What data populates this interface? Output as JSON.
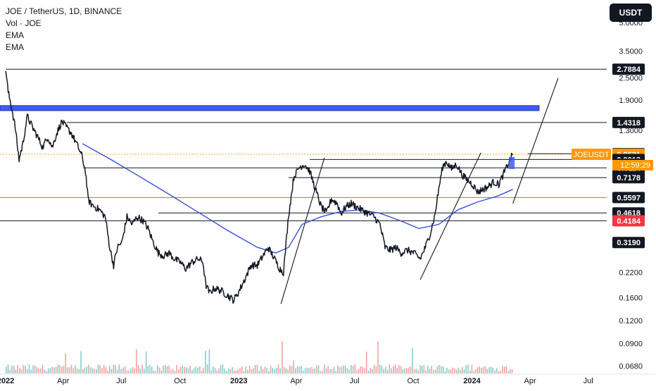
{
  "header": {
    "title": "JOE / TetherUS, 1D, BINANCE",
    "indicators": [
      "Vol · JOE",
      "EMA",
      "EMA"
    ],
    "currency_button": "USDT"
  },
  "colors": {
    "price": "#131722",
    "ema": "#3b4fd8",
    "volume_up": "#26a69a",
    "volume_down": "#ef5350",
    "zone": "#3d5afe",
    "support_red": "#ef5350",
    "last_price_tag": "#ff9800",
    "dark_tag": "#131722",
    "red_tag": "#f23645"
  },
  "chart_data": {
    "type": "line",
    "title": "JOE / TetherUS, 1D, BINANCE",
    "xlabel": "",
    "ylabel": "",
    "y_scale": "log",
    "ylim": [
      0.062,
      6.4
    ],
    "x_range": [
      "2022-01-01",
      "2024-07-30"
    ],
    "x_ticks": [
      {
        "date": "2022-01-01",
        "label": "2022",
        "bold": true
      },
      {
        "date": "2022-04-01",
        "label": "Apr",
        "bold": false
      },
      {
        "date": "2022-07-01",
        "label": "Jul",
        "bold": false
      },
      {
        "date": "2022-10-01",
        "label": "Oct",
        "bold": false
      },
      {
        "date": "2023-01-01",
        "label": "2023",
        "bold": true
      },
      {
        "date": "2023-04-01",
        "label": "Apr",
        "bold": false
      },
      {
        "date": "2023-07-01",
        "label": "Jul",
        "bold": false
      },
      {
        "date": "2023-10-01",
        "label": "Oct",
        "bold": false
      },
      {
        "date": "2024-01-01",
        "label": "2024",
        "bold": true
      },
      {
        "date": "2024-04-01",
        "label": "Apr",
        "bold": false
      },
      {
        "date": "2024-07-01",
        "label": "Jul",
        "bold": false
      }
    ],
    "y_ticks": [
      {
        "value": 5.0,
        "label": "5.0000"
      },
      {
        "value": 3.5,
        "label": "3.5000"
      },
      {
        "value": 2.5,
        "label": "2.5000"
      },
      {
        "value": 1.9,
        "label": "1.9000"
      },
      {
        "value": 1.3,
        "label": "1.3000"
      },
      {
        "value": 0.22,
        "label": "0.2200"
      },
      {
        "value": 0.16,
        "label": "0.1600"
      },
      {
        "value": 0.12,
        "label": "0.1200"
      },
      {
        "value": 0.09,
        "label": "0.0900"
      },
      {
        "value": 0.068,
        "label": "0.0680"
      }
    ],
    "series": [
      {
        "name": "JOE / TetherUS",
        "points": [
          [
            "2022-01-01",
            2.8
          ],
          [
            "2022-01-05",
            2.1
          ],
          [
            "2022-01-10",
            1.75
          ],
          [
            "2022-01-16",
            1.35
          ],
          [
            "2022-01-22",
            0.9
          ],
          [
            "2022-01-28",
            1.1
          ],
          [
            "2022-02-04",
            1.55
          ],
          [
            "2022-02-12",
            1.35
          ],
          [
            "2022-02-20",
            1.2
          ],
          [
            "2022-02-28",
            1.05
          ],
          [
            "2022-03-08",
            1.2
          ],
          [
            "2022-03-15",
            1.05
          ],
          [
            "2022-03-22",
            1.25
          ],
          [
            "2022-03-30",
            1.45
          ],
          [
            "2022-04-06",
            1.35
          ],
          [
            "2022-04-14",
            1.25
          ],
          [
            "2022-04-22",
            1.1
          ],
          [
            "2022-04-30",
            0.95
          ],
          [
            "2022-05-06",
            0.78
          ],
          [
            "2022-05-10",
            0.55
          ],
          [
            "2022-05-14",
            0.52
          ],
          [
            "2022-05-20",
            0.5
          ],
          [
            "2022-05-28",
            0.48
          ],
          [
            "2022-06-06",
            0.44
          ],
          [
            "2022-06-13",
            0.3
          ],
          [
            "2022-06-19",
            0.24
          ],
          [
            "2022-06-25",
            0.3
          ],
          [
            "2022-07-02",
            0.32
          ],
          [
            "2022-07-10",
            0.44
          ],
          [
            "2022-07-18",
            0.4
          ],
          [
            "2022-07-26",
            0.44
          ],
          [
            "2022-08-04",
            0.42
          ],
          [
            "2022-08-12",
            0.38
          ],
          [
            "2022-08-20",
            0.32
          ],
          [
            "2022-08-28",
            0.28
          ],
          [
            "2022-09-06",
            0.27
          ],
          [
            "2022-09-14",
            0.28
          ],
          [
            "2022-09-22",
            0.26
          ],
          [
            "2022-10-01",
            0.25
          ],
          [
            "2022-10-10",
            0.23
          ],
          [
            "2022-10-20",
            0.25
          ],
          [
            "2022-10-30",
            0.26
          ],
          [
            "2022-11-06",
            0.25
          ],
          [
            "2022-11-10",
            0.19
          ],
          [
            "2022-11-16",
            0.17
          ],
          [
            "2022-11-24",
            0.18
          ],
          [
            "2022-12-04",
            0.175
          ],
          [
            "2022-12-14",
            0.165
          ],
          [
            "2022-12-24",
            0.155
          ],
          [
            "2022-12-31",
            0.17
          ],
          [
            "2023-01-10",
            0.2
          ],
          [
            "2023-01-20",
            0.24
          ],
          [
            "2023-01-30",
            0.24
          ],
          [
            "2023-02-08",
            0.27
          ],
          [
            "2023-02-16",
            0.3
          ],
          [
            "2023-02-26",
            0.26
          ],
          [
            "2023-03-06",
            0.23
          ],
          [
            "2023-03-12",
            0.22
          ],
          [
            "2023-03-20",
            0.45
          ],
          [
            "2023-03-28",
            0.72
          ],
          [
            "2023-04-06",
            0.82
          ],
          [
            "2023-04-14",
            0.85
          ],
          [
            "2023-04-22",
            0.78
          ],
          [
            "2023-05-01",
            0.62
          ],
          [
            "2023-05-10",
            0.5
          ],
          [
            "2023-05-18",
            0.46
          ],
          [
            "2023-05-26",
            0.55
          ],
          [
            "2023-06-04",
            0.52
          ],
          [
            "2023-06-10",
            0.46
          ],
          [
            "2023-06-18",
            0.5
          ],
          [
            "2023-06-26",
            0.52
          ],
          [
            "2023-07-04",
            0.5
          ],
          [
            "2023-07-12",
            0.48
          ],
          [
            "2023-07-22",
            0.46
          ],
          [
            "2023-08-01",
            0.44
          ],
          [
            "2023-08-10",
            0.4
          ],
          [
            "2023-08-18",
            0.3
          ],
          [
            "2023-08-26",
            0.29
          ],
          [
            "2023-09-04",
            0.3
          ],
          [
            "2023-09-12",
            0.28
          ],
          [
            "2023-09-22",
            0.29
          ],
          [
            "2023-10-02",
            0.28
          ],
          [
            "2023-10-12",
            0.26
          ],
          [
            "2023-10-20",
            0.3
          ],
          [
            "2023-10-28",
            0.36
          ],
          [
            "2023-11-04",
            0.45
          ],
          [
            "2023-11-10",
            0.62
          ],
          [
            "2023-11-16",
            0.82
          ],
          [
            "2023-11-22",
            0.88
          ],
          [
            "2023-11-30",
            0.8
          ],
          [
            "2023-12-08",
            0.85
          ],
          [
            "2023-12-16",
            0.75
          ],
          [
            "2023-12-24",
            0.7
          ],
          [
            "2024-01-02",
            0.66
          ],
          [
            "2024-01-10",
            0.6
          ],
          [
            "2024-01-18",
            0.62
          ],
          [
            "2024-01-26",
            0.64
          ],
          [
            "2024-02-04",
            0.68
          ],
          [
            "2024-02-12",
            0.66
          ],
          [
            "2024-02-20",
            0.76
          ],
          [
            "2024-02-26",
            0.84
          ],
          [
            "2024-03-02",
            0.92
          ],
          [
            "2024-03-05",
            0.96
          ]
        ]
      },
      {
        "name": "EMA",
        "points": [
          [
            "2022-05-01",
            1.1
          ],
          [
            "2022-06-15",
            0.9
          ],
          [
            "2022-08-01",
            0.72
          ],
          [
            "2022-09-15",
            0.58
          ],
          [
            "2022-11-01",
            0.46
          ],
          [
            "2022-12-15",
            0.37
          ],
          [
            "2023-01-30",
            0.3
          ],
          [
            "2023-02-28",
            0.28
          ],
          [
            "2023-03-20",
            0.3
          ],
          [
            "2023-04-10",
            0.4
          ],
          [
            "2023-05-10",
            0.44
          ],
          [
            "2023-06-10",
            0.47
          ],
          [
            "2023-07-10",
            0.48
          ],
          [
            "2023-08-10",
            0.46
          ],
          [
            "2023-09-10",
            0.42
          ],
          [
            "2023-10-10",
            0.38
          ],
          [
            "2023-11-10",
            0.4
          ],
          [
            "2023-12-10",
            0.48
          ],
          [
            "2024-01-10",
            0.53
          ],
          [
            "2024-02-10",
            0.57
          ],
          [
            "2024-03-05",
            0.62
          ]
        ]
      }
    ],
    "volume": [],
    "horizontal_lines": [
      2.7884,
      1.4318,
      0.9692,
      0.9621,
      0.9013,
      0.8114,
      0.7178,
      0.5597,
      0.4618,
      0.4184
    ],
    "zone": {
      "y_low": 1.66,
      "y_high": 1.77
    },
    "trendlines": [
      {
        "from": [
          "2023-03-08",
          0.148
        ],
        "to": [
          "2023-05-15",
          0.92
        ]
      },
      {
        "from": [
          "2023-10-12",
          0.2
        ],
        "to": [
          "2024-01-15",
          0.98
        ]
      },
      {
        "from": [
          "2024-03-05",
          0.52
        ],
        "to": [
          "2024-05-15",
          2.5
        ]
      }
    ],
    "price_labels": [
      {
        "value": 2.7884,
        "label": "2.7884",
        "style": "dark"
      },
      {
        "value": 1.4318,
        "label": "1.4318",
        "style": "dark"
      },
      {
        "value": 0.9692,
        "label": "0.9692",
        "style": "dark"
      },
      {
        "value": 0.9621,
        "label": "0.9621",
        "style": "last"
      },
      {
        "value": 0.9013,
        "label": "0.9013",
        "style": "dark"
      },
      {
        "value": 0.8495,
        "label": "0.8495",
        "style": "dark"
      },
      {
        "value": 0.8114,
        "label": "0.8114",
        "style": "dark"
      },
      {
        "value": 0.7178,
        "label": "0.7178",
        "style": "dark"
      },
      {
        "value": 0.5597,
        "label": "0.5597",
        "style": "dark"
      },
      {
        "value": 0.4618,
        "label": "0.4618",
        "style": "dark"
      },
      {
        "value": 0.4184,
        "label": "0.4184",
        "style": "red"
      },
      {
        "value": 0.319,
        "label": "0.3190",
        "style": "dark"
      }
    ],
    "last_price": {
      "symbol": "JOEUSDT",
      "value": 0.9621,
      "label": "0.9621",
      "countdown": "12:59:29"
    }
  }
}
